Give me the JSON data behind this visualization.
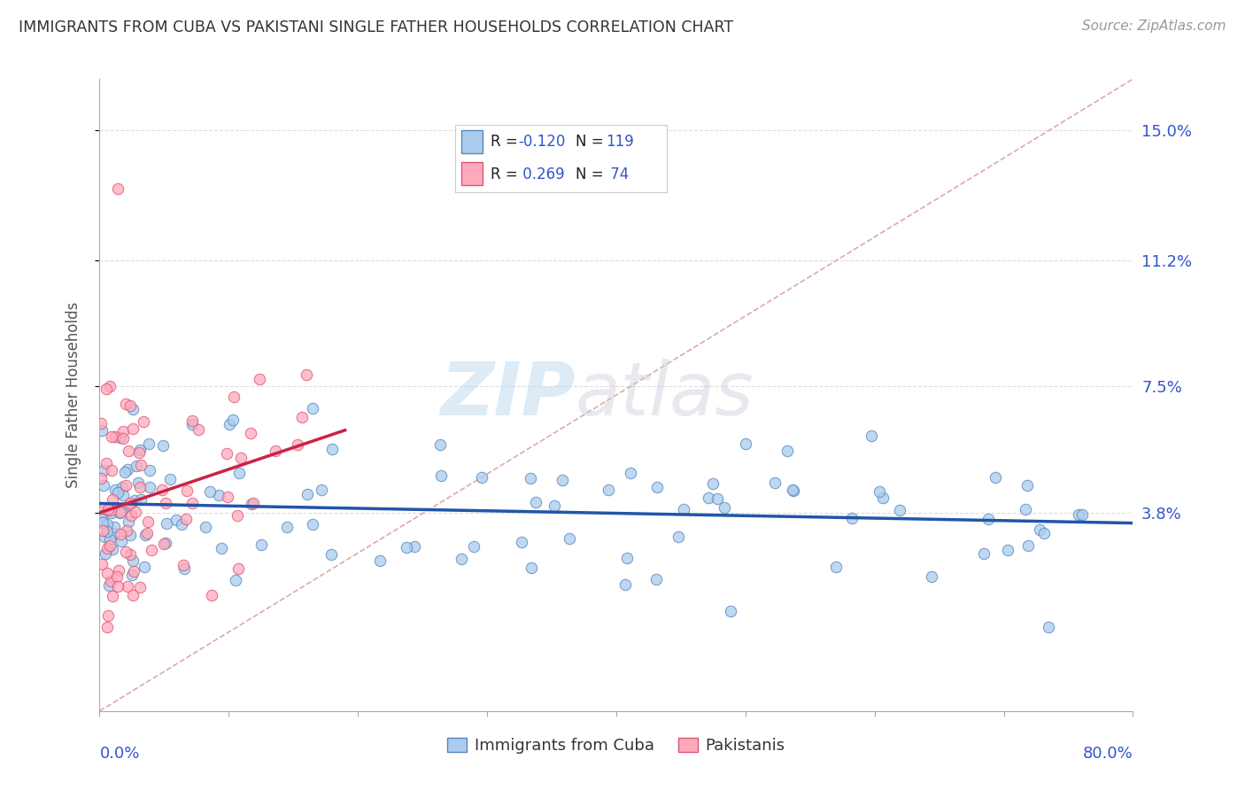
{
  "title": "IMMIGRANTS FROM CUBA VS PAKISTANI SINGLE FATHER HOUSEHOLDS CORRELATION CHART",
  "source": "Source: ZipAtlas.com",
  "ylabel": "Single Father Households",
  "color_cuba_fill": "#aaccee",
  "color_cuba_edge": "#5588bb",
  "color_pak_fill": "#ffaabb",
  "color_pak_edge": "#dd5577",
  "color_line_cuba": "#2255aa",
  "color_line_pak": "#cc2244",
  "color_diagonal": "#ddaaaa",
  "color_ytick": "#3355cc",
  "color_title": "#333333",
  "color_source": "#999999",
  "background": "#ffffff",
  "xrange": [
    0.0,
    0.8
  ],
  "yrange": [
    -0.02,
    0.165
  ],
  "ytick_vals": [
    0.038,
    0.075,
    0.112,
    0.15
  ],
  "ytick_labels": [
    "3.8%",
    "7.5%",
    "11.2%",
    "15.0%"
  ],
  "n_cuba": 119,
  "n_pak": 74,
  "legend_label_cuba": "Immigrants from Cuba",
  "legend_label_pak": "Pakistanis"
}
